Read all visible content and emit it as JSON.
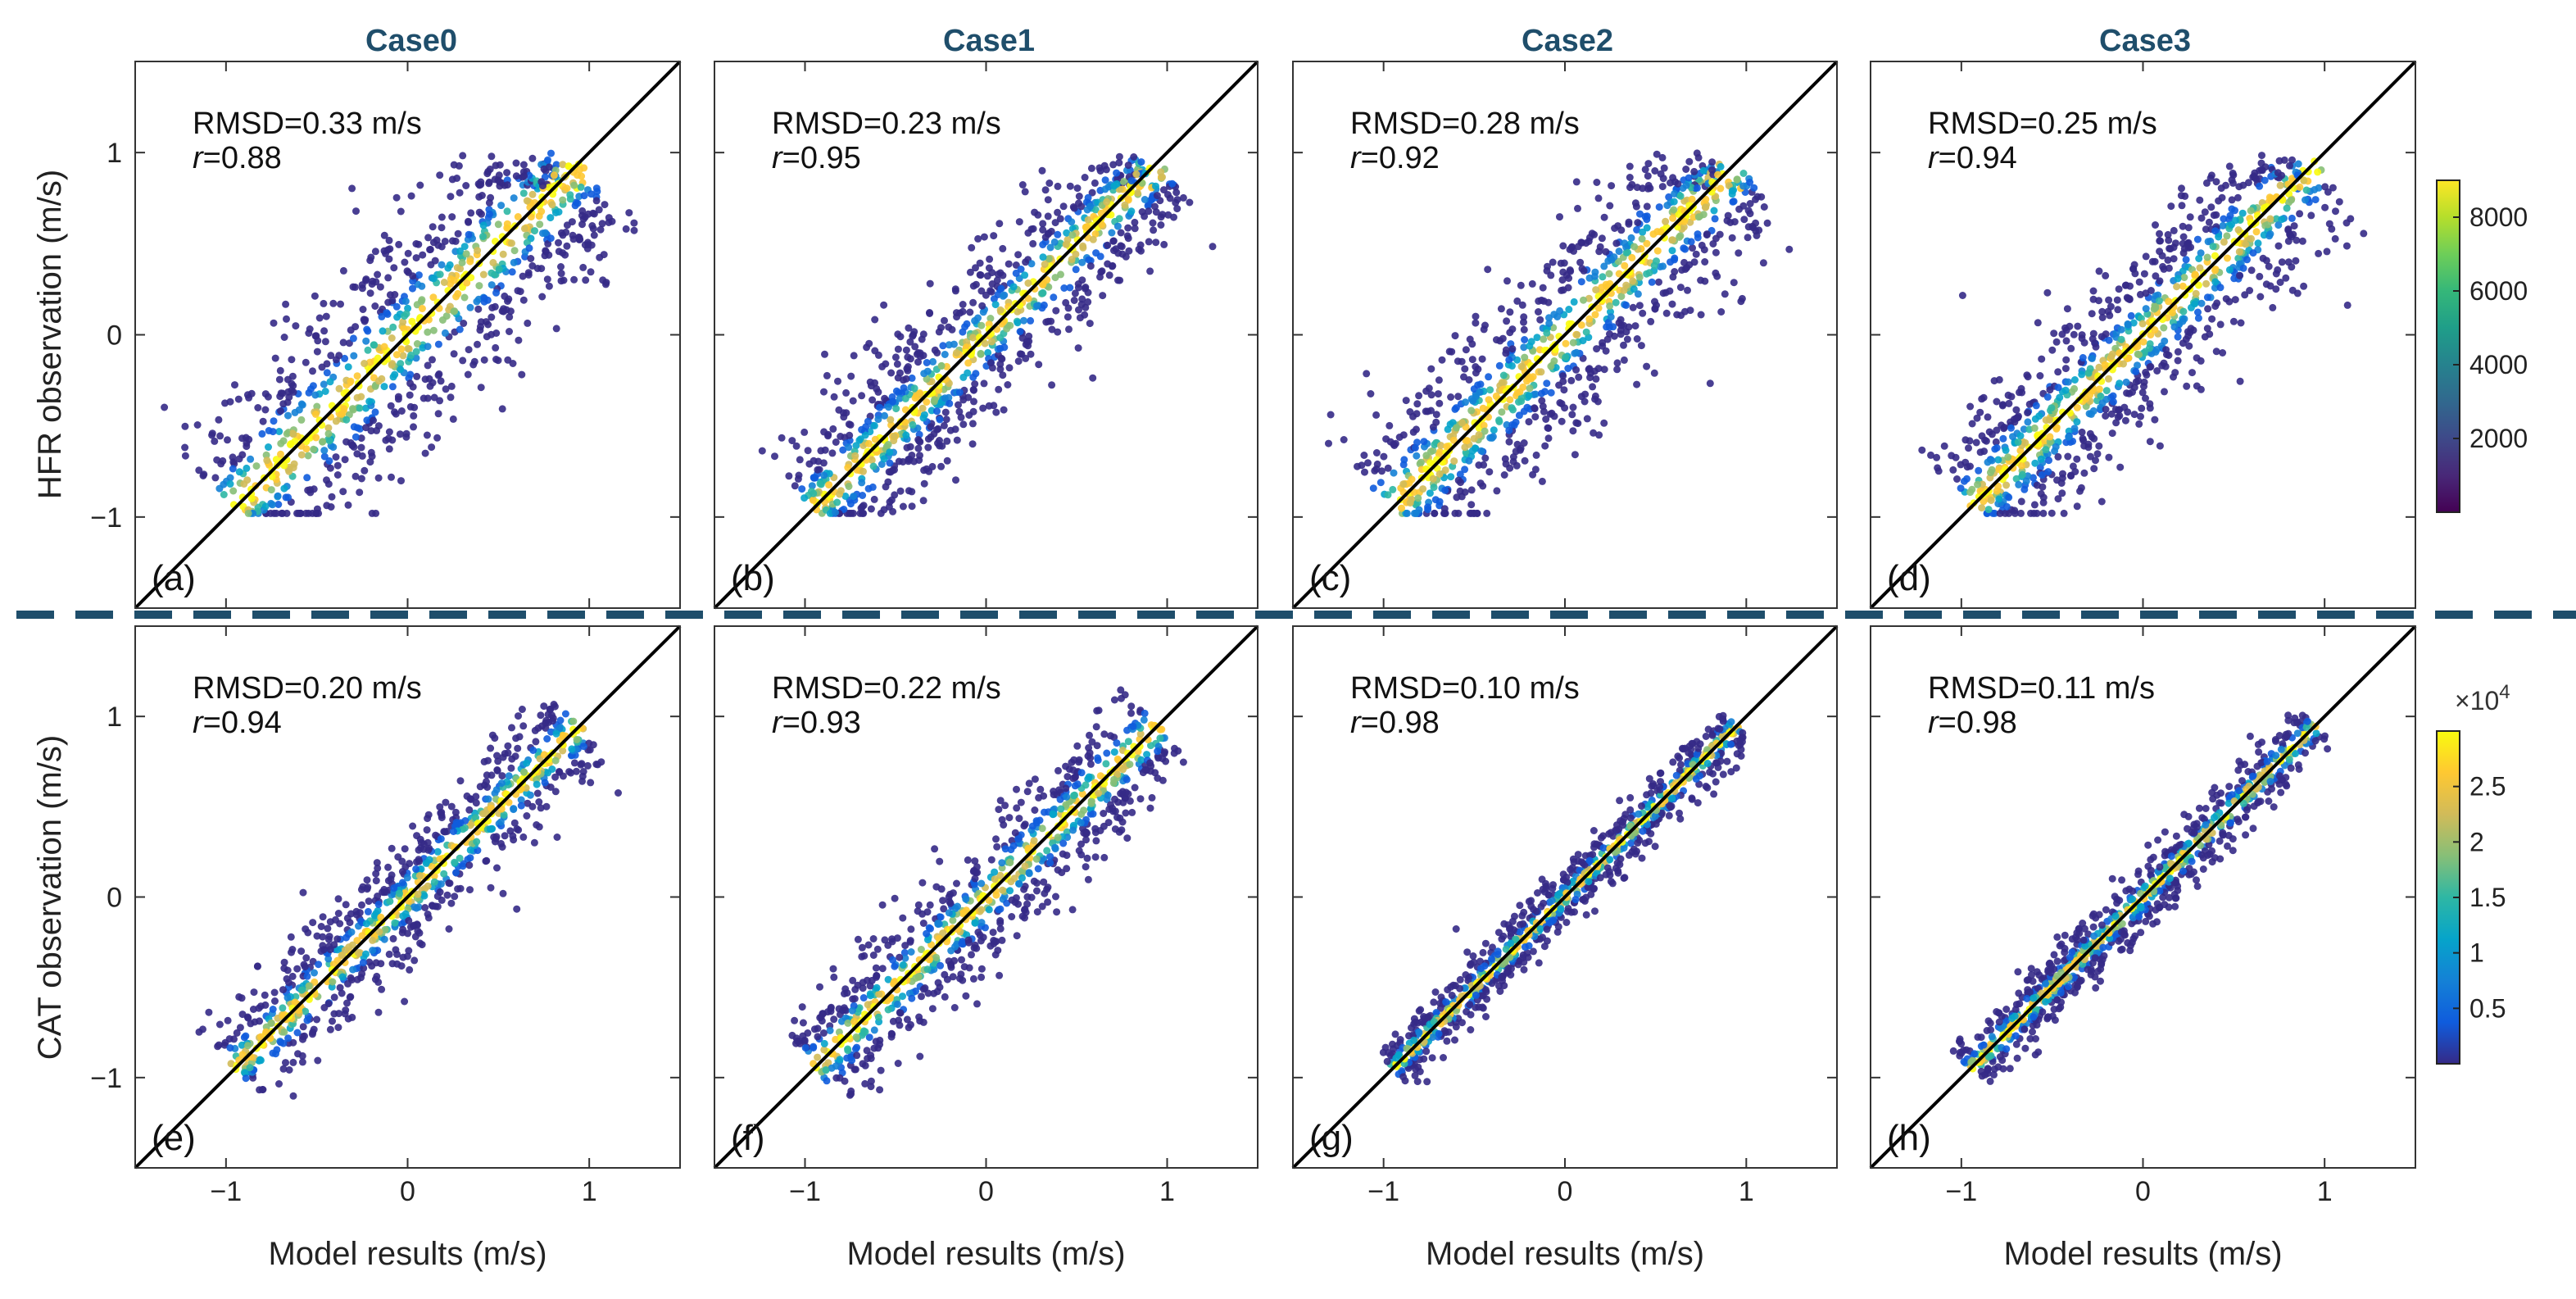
{
  "colors": {
    "case_title": "#1f4e6b",
    "divider": "#1f4e6b",
    "diagonal": "#000000",
    "viridis": [
      "#440154",
      "#482878",
      "#3e4989",
      "#31688e",
      "#26828e",
      "#1f9e89",
      "#35b779",
      "#6ece58",
      "#b5de2b",
      "#fde725"
    ],
    "parula": [
      "#352a87",
      "#0f5cdd",
      "#1481d6",
      "#06a4ca",
      "#2eb7a4",
      "#87bf77",
      "#d1bb59",
      "#fec832",
      "#f9fb0e"
    ]
  },
  "chart_data": {
    "type": "scatter",
    "case_titles": [
      "Case0",
      "Case1",
      "Case2",
      "Case3"
    ],
    "xlabel": "Model results (m/s)",
    "ylabels": [
      "HFR observation (m/s)",
      "CAT observation (m/s)"
    ],
    "xlim": [
      -1.5,
      1.5
    ],
    "ylim": [
      -1.5,
      1.5
    ],
    "xticks": [
      -1,
      0,
      1
    ],
    "yticks": [
      -1,
      0,
      1
    ],
    "xtick_labels": [
      "−1",
      "0",
      "1"
    ],
    "ytick_labels": [
      "−1",
      "0",
      "1"
    ],
    "reference_line": "1:1",
    "panels": [
      {
        "label": "(a)",
        "row": "HFR",
        "case": "Case0",
        "rmsd_text": "RMSD=0.33 m/s",
        "r_label": "r",
        "r_value": "=0.88",
        "rmsd": 0.33,
        "r": 0.88
      },
      {
        "label": "(b)",
        "row": "HFR",
        "case": "Case1",
        "rmsd_text": "RMSD=0.23 m/s",
        "r_label": "r",
        "r_value": "=0.95",
        "rmsd": 0.23,
        "r": 0.95
      },
      {
        "label": "(c)",
        "row": "HFR",
        "case": "Case2",
        "rmsd_text": "RMSD=0.28 m/s",
        "r_label": "r",
        "r_value": "=0.92",
        "rmsd": 0.28,
        "r": 0.92
      },
      {
        "label": "(d)",
        "row": "HFR",
        "case": "Case3",
        "rmsd_text": "RMSD=0.25 m/s",
        "r_label": "r",
        "r_value": "=0.94",
        "rmsd": 0.25,
        "r": 0.94
      },
      {
        "label": "(e)",
        "row": "CAT",
        "case": "Case0",
        "rmsd_text": "RMSD=0.20 m/s",
        "r_label": "r",
        "r_value": "=0.94",
        "rmsd": 0.2,
        "r": 0.94
      },
      {
        "label": "(f)",
        "row": "CAT",
        "case": "Case1",
        "rmsd_text": "RMSD=0.22 m/s",
        "r_label": "r",
        "r_value": "=0.93",
        "rmsd": 0.22,
        "r": 0.93
      },
      {
        "label": "(g)",
        "row": "CAT",
        "case": "Case2",
        "rmsd_text": "RMSD=0.10 m/s",
        "r_label": "r",
        "r_value": "=0.98",
        "rmsd": 0.1,
        "r": 0.98
      },
      {
        "label": "(h)",
        "row": "CAT",
        "case": "Case3",
        "rmsd_text": "RMSD=0.11 m/s",
        "r_label": "r",
        "r_value": "=0.98",
        "rmsd": 0.11,
        "r": 0.98
      }
    ],
    "colorbars": [
      {
        "row": "HFR",
        "range": [
          0,
          9000
        ],
        "ticks": [
          2000,
          4000,
          6000,
          8000
        ],
        "tick_labels": [
          "2000",
          "4000",
          "6000",
          "8000"
        ],
        "multiplier": ""
      },
      {
        "row": "CAT",
        "range": [
          0,
          3.0
        ],
        "ticks": [
          0.5,
          1,
          1.5,
          2,
          2.5
        ],
        "tick_labels": [
          "0.5",
          "1",
          "1.5",
          "2",
          "2.5"
        ],
        "multiplier_base": "×10",
        "multiplier_exp": "4"
      }
    ]
  }
}
